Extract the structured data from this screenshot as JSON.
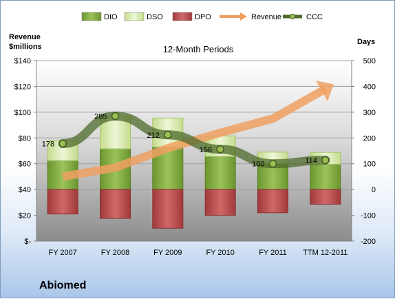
{
  "chart_data": {
    "type": "bar",
    "title": "12-Month Periods",
    "company": "Abiomed",
    "left_axis_label_line1": "Revenue",
    "left_axis_label_line2": "$millions",
    "right_axis_label": "Days",
    "categories": [
      "FY 2007",
      "FY 2008",
      "FY 2009",
      "FY 2010",
      "FY 2011",
      "TTM 12-2011"
    ],
    "left_ylim": [
      0,
      140
    ],
    "left_ticks": [
      "$-",
      "$20",
      "$40",
      "$60",
      "$80",
      "$100",
      "$120",
      "$140"
    ],
    "right_ylim": [
      -200,
      500
    ],
    "right_ticks": [
      "-200",
      "-100",
      "0",
      "100",
      "200",
      "300",
      "400",
      "500"
    ],
    "series": [
      {
        "name": "DIO",
        "axis": "days",
        "color": "#77a033",
        "values": [
          112,
          158,
          165,
          128,
          100,
          98
        ]
      },
      {
        "name": "DSO",
        "axis": "days",
        "color": "#d8eab0",
        "values": [
          78,
          127,
          112,
          80,
          45,
          46
        ]
      },
      {
        "name": "DPO",
        "axis": "days",
        "color": "#b94a4a",
        "values": [
          -95,
          -112,
          -150,
          -100,
          -90,
          -57
        ]
      },
      {
        "name": "Revenue",
        "axis": "revenue",
        "color": "#f0a060",
        "values": [
          50,
          57,
          72,
          84,
          95,
          118
        ]
      },
      {
        "name": "CCC",
        "axis": "days",
        "color": "#4e6b2b",
        "values": [
          178,
          285,
          212,
          156,
          100,
          114
        ],
        "labels": [
          "178",
          "285",
          "212",
          "156",
          "100",
          "114"
        ]
      }
    ],
    "grid": true,
    "legend_position": "top"
  }
}
